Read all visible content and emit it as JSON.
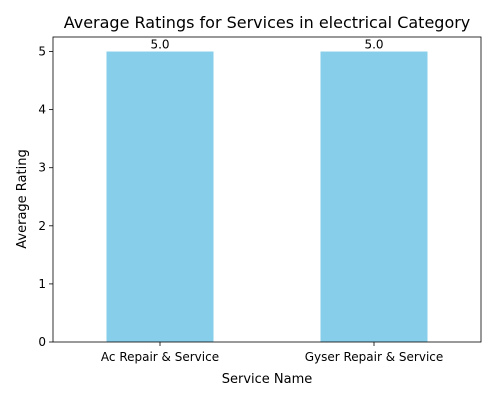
{
  "chart_data": {
    "type": "bar",
    "title": "Average Ratings for Services in electrical Category",
    "xlabel": "Service Name",
    "ylabel": "Average Rating",
    "categories": [
      "Ac Repair & Service",
      "Gyser Repair & Service"
    ],
    "values": [
      5.0,
      5.0
    ],
    "value_labels": [
      "5.0",
      "5.0"
    ],
    "ylim": [
      0,
      5.25
    ],
    "yticks": [
      0,
      1,
      2,
      3,
      4,
      5
    ],
    "bar_color": "#87CEEB",
    "grid": false,
    "legend": "none"
  }
}
